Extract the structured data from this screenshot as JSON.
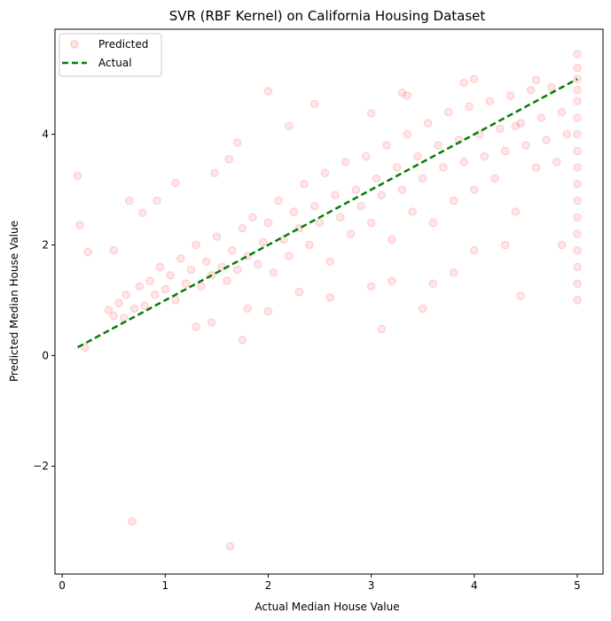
{
  "chart_data": {
    "type": "scatter",
    "title": "SVR (RBF Kernel) on California Housing Dataset",
    "xlabel": "Actual Median House Value",
    "ylabel": "Predicted Median House Value",
    "xlim": [
      -0.07,
      5.25
    ],
    "ylim": [
      -3.95,
      5.9
    ],
    "xticks": [
      0,
      1,
      2,
      3,
      4,
      5
    ],
    "yticks": [
      -2,
      0,
      2,
      4
    ],
    "ytick_labels": [
      "−2",
      "0",
      "2",
      "4"
    ],
    "grid": false,
    "legend": {
      "placement": "top-left",
      "entries": [
        {
          "label": "Predicted",
          "kind": "marker",
          "color": "#ff0000"
        },
        {
          "label": "Actual",
          "kind": "dashed-line",
          "color": "#008000"
        }
      ]
    },
    "series": [
      {
        "name": "Predicted",
        "kind": "scatter",
        "color": "#ff0000",
        "alpha": 0.1,
        "points": [
          [
            0.15,
            3.25
          ],
          [
            0.17,
            2.36
          ],
          [
            0.25,
            1.87
          ],
          [
            0.22,
            0.15
          ],
          [
            0.68,
            -3.0
          ],
          [
            1.63,
            -3.45
          ],
          [
            1.75,
            0.28
          ],
          [
            2.0,
            4.78
          ],
          [
            2.45,
            4.55
          ],
          [
            3.1,
            0.48
          ],
          [
            3.35,
            4.7
          ],
          [
            3.9,
            4.93
          ],
          [
            4.0,
            5.0
          ],
          [
            4.6,
            4.98
          ],
          [
            4.45,
            1.08
          ],
          [
            4.85,
            2.0
          ],
          [
            3.0,
            4.38
          ],
          [
            0.45,
            0.82
          ],
          [
            0.5,
            0.72
          ],
          [
            0.55,
            0.95
          ],
          [
            0.6,
            0.68
          ],
          [
            0.62,
            1.1
          ],
          [
            0.7,
            0.85
          ],
          [
            0.75,
            1.25
          ],
          [
            0.8,
            0.9
          ],
          [
            0.85,
            1.35
          ],
          [
            0.9,
            1.1
          ],
          [
            0.95,
            1.6
          ],
          [
            1.0,
            1.2
          ],
          [
            1.05,
            1.45
          ],
          [
            1.1,
            1.0
          ],
          [
            1.15,
            1.75
          ],
          [
            1.2,
            1.3
          ],
          [
            1.25,
            1.55
          ],
          [
            1.3,
            2.0
          ],
          [
            1.35,
            1.25
          ],
          [
            1.4,
            1.7
          ],
          [
            1.45,
            1.45
          ],
          [
            1.5,
            2.15
          ],
          [
            1.55,
            1.6
          ],
          [
            1.6,
            1.35
          ],
          [
            1.65,
            1.9
          ],
          [
            1.7,
            1.55
          ],
          [
            1.75,
            2.3
          ],
          [
            1.8,
            1.8
          ],
          [
            1.85,
            2.5
          ],
          [
            1.9,
            1.65
          ],
          [
            1.95,
            2.05
          ],
          [
            2.0,
            2.4
          ],
          [
            2.05,
            1.5
          ],
          [
            2.1,
            2.8
          ],
          [
            2.15,
            2.1
          ],
          [
            2.2,
            1.8
          ],
          [
            2.25,
            2.6
          ],
          [
            2.3,
            2.3
          ],
          [
            2.35,
            3.1
          ],
          [
            2.4,
            2.0
          ],
          [
            2.45,
            2.7
          ],
          [
            2.5,
            2.4
          ],
          [
            2.55,
            3.3
          ],
          [
            2.6,
            1.7
          ],
          [
            2.65,
            2.9
          ],
          [
            2.7,
            2.5
          ],
          [
            2.75,
            3.5
          ],
          [
            2.8,
            2.2
          ],
          [
            2.85,
            3.0
          ],
          [
            2.9,
            2.7
          ],
          [
            2.95,
            3.6
          ],
          [
            3.0,
            2.4
          ],
          [
            3.05,
            3.2
          ],
          [
            3.1,
            2.9
          ],
          [
            3.15,
            3.8
          ],
          [
            3.2,
            2.1
          ],
          [
            3.25,
            3.4
          ],
          [
            3.3,
            3.0
          ],
          [
            3.35,
            4.0
          ],
          [
            3.4,
            2.6
          ],
          [
            3.45,
            3.6
          ],
          [
            3.5,
            3.2
          ],
          [
            3.55,
            4.2
          ],
          [
            3.6,
            2.4
          ],
          [
            3.65,
            3.8
          ],
          [
            3.7,
            3.4
          ],
          [
            3.75,
            4.4
          ],
          [
            3.8,
            2.8
          ],
          [
            3.85,
            3.9
          ],
          [
            3.9,
            3.5
          ],
          [
            3.95,
            4.5
          ],
          [
            4.0,
            3.0
          ],
          [
            4.05,
            4.0
          ],
          [
            4.1,
            3.6
          ],
          [
            4.15,
            4.6
          ],
          [
            4.2,
            3.2
          ],
          [
            4.25,
            4.1
          ],
          [
            4.3,
            3.7
          ],
          [
            4.35,
            4.7
          ],
          [
            4.4,
            2.6
          ],
          [
            4.45,
            4.2
          ],
          [
            4.5,
            3.8
          ],
          [
            4.55,
            4.8
          ],
          [
            4.6,
            3.4
          ],
          [
            4.65,
            4.3
          ],
          [
            4.7,
            3.9
          ],
          [
            4.75,
            4.85
          ],
          [
            4.8,
            3.5
          ],
          [
            4.85,
            4.4
          ],
          [
            4.9,
            4.0
          ],
          [
            5.0,
            1.0
          ],
          [
            5.0,
            1.3
          ],
          [
            5.0,
            1.6
          ],
          [
            5.0,
            1.9
          ],
          [
            5.0,
            2.2
          ],
          [
            5.0,
            2.5
          ],
          [
            5.0,
            2.8
          ],
          [
            5.0,
            3.1
          ],
          [
            5.0,
            3.4
          ],
          [
            5.0,
            3.7
          ],
          [
            5.0,
            4.0
          ],
          [
            5.0,
            4.3
          ],
          [
            5.0,
            4.6
          ],
          [
            5.0,
            4.8
          ],
          [
            5.0,
            5.0
          ],
          [
            5.0,
            5.2
          ],
          [
            5.0,
            5.45
          ],
          [
            0.5,
            1.9
          ],
          [
            0.65,
            2.8
          ],
          [
            0.78,
            2.58
          ],
          [
            0.92,
            2.8
          ],
          [
            1.1,
            3.12
          ],
          [
            1.48,
            3.3
          ],
          [
            1.62,
            3.55
          ],
          [
            1.7,
            3.85
          ],
          [
            2.2,
            4.15
          ],
          [
            1.3,
            0.52
          ],
          [
            1.45,
            0.6
          ],
          [
            1.8,
            0.85
          ],
          [
            2.0,
            0.8
          ],
          [
            2.3,
            1.15
          ],
          [
            2.6,
            1.05
          ],
          [
            3.0,
            1.25
          ],
          [
            3.2,
            1.35
          ],
          [
            3.5,
            0.85
          ],
          [
            3.6,
            1.3
          ],
          [
            3.8,
            1.5
          ],
          [
            4.0,
            1.9
          ],
          [
            4.3,
            2.0
          ],
          [
            3.3,
            4.75
          ],
          [
            4.4,
            4.15
          ]
        ]
      },
      {
        "name": "Actual",
        "kind": "line",
        "color": "#008000",
        "dashed": true,
        "points": [
          [
            0.15,
            0.15
          ],
          [
            5.0,
            5.0
          ]
        ]
      }
    ]
  }
}
